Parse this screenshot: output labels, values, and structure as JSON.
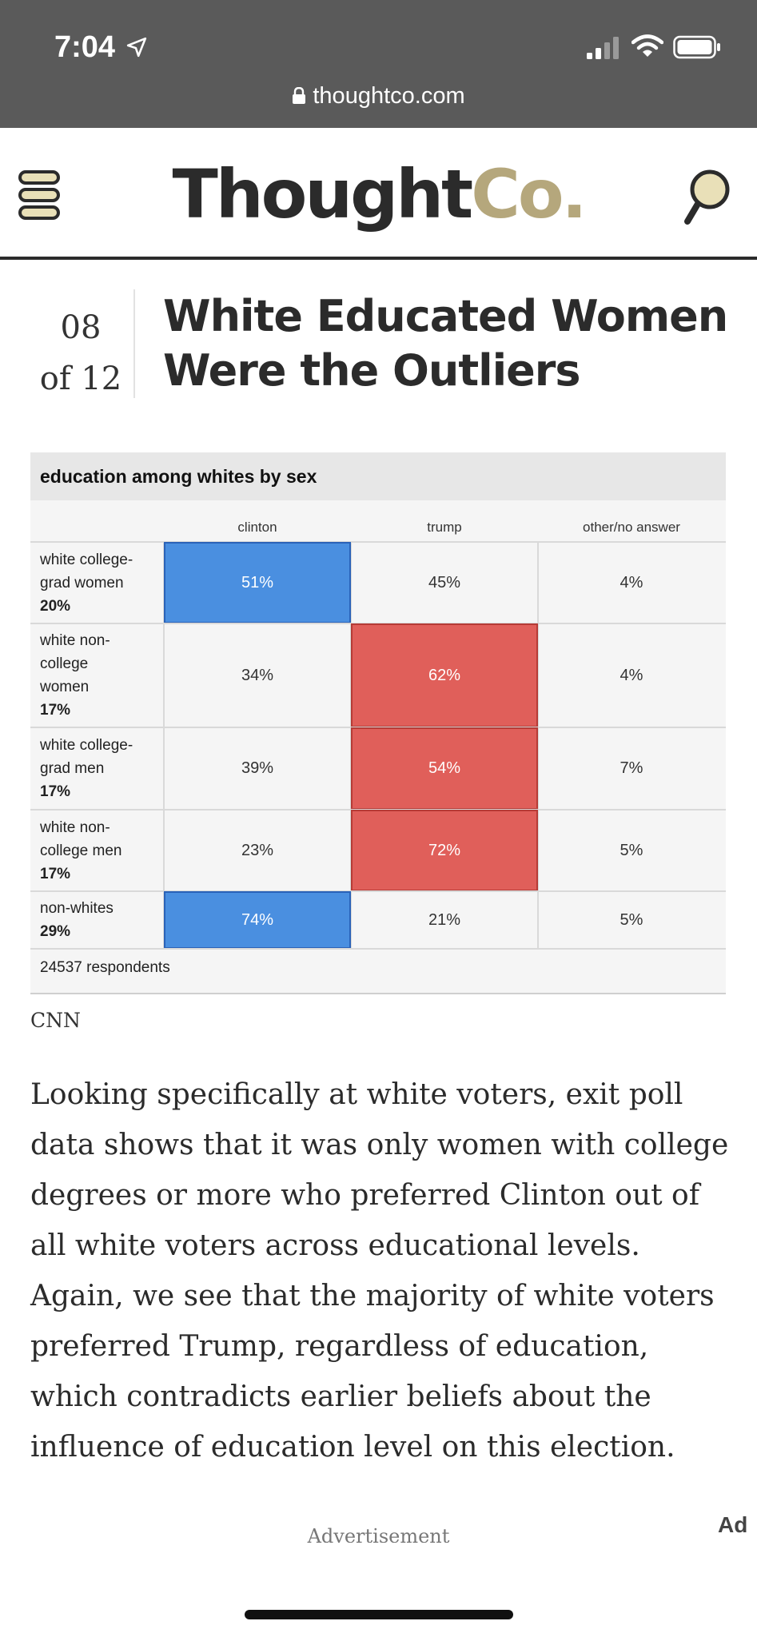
{
  "status_bar": {
    "time": "7:04",
    "url": "thoughtco.com"
  },
  "header": {
    "logo_part1": "Thought",
    "logo_part2": "Co."
  },
  "step": {
    "number": "08",
    "of_total": "of 12",
    "title_line1": "White Educated Women",
    "title_line2": "Were the Outliers"
  },
  "table": {
    "title": "education among whites by sex",
    "columns": [
      "clinton",
      "trump",
      "other/no answer"
    ],
    "rows": [
      {
        "label_lines": [
          "white college-",
          "grad women"
        ],
        "share": "20%",
        "values": [
          "51%",
          "45%",
          "4%"
        ],
        "highlight": "clinton"
      },
      {
        "label_lines": [
          "white non-",
          "college",
          "women"
        ],
        "share": "17%",
        "values": [
          "34%",
          "62%",
          "4%"
        ],
        "highlight": "trump"
      },
      {
        "label_lines": [
          "white college-",
          "grad men"
        ],
        "share": "17%",
        "values": [
          "39%",
          "54%",
          "7%"
        ],
        "highlight": "trump"
      },
      {
        "label_lines": [
          "white non-",
          "college men"
        ],
        "share": "17%",
        "values": [
          "23%",
          "72%",
          "5%"
        ],
        "highlight": "trump"
      },
      {
        "label_lines": [
          "non-whites"
        ],
        "share": "29%",
        "values": [
          "74%",
          "21%",
          "5%"
        ],
        "highlight": "clinton"
      }
    ],
    "respondents": "24537 respondents",
    "colors": {
      "clinton": "#4a8fe0",
      "trump": "#e05f5a"
    }
  },
  "source": "CNN",
  "body_text": "Looking specifically at white voters, exit poll data shows that it was only women with college degrees or more who preferred Clinton out of all white voters across educational levels. Again, we see that the majority of white voters preferred Trump, regardless of education, which contradicts earlier beliefs about the influence of education level on this election.",
  "ad": {
    "label": "Advertisement",
    "badge": "Ad"
  },
  "icons": [
    "location-arrow-icon",
    "signal-icon",
    "wifi-icon",
    "battery-icon",
    "lock-icon",
    "menu-icon",
    "search-icon"
  ]
}
